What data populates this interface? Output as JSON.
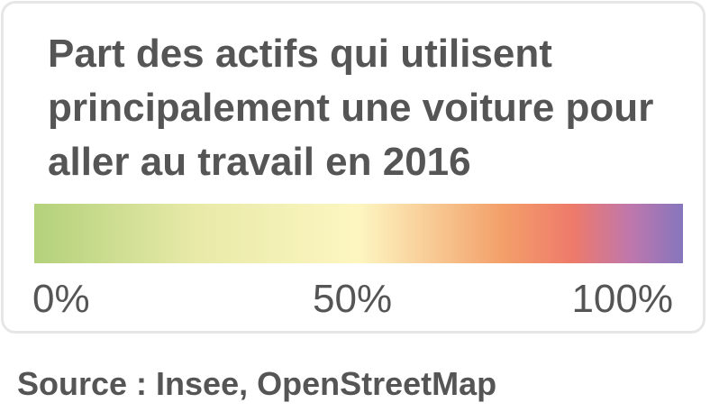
{
  "legend": {
    "title": "Part des actifs qui utilisent principalement une voiture pour aller au travail en 2016",
    "scale_colors": [
      "#b3d17b",
      "#e8eaa8",
      "#fdf6c1",
      "#f3a06a",
      "#ee7a6a",
      "#be77ad",
      "#8676bd"
    ],
    "scale_min": 0,
    "scale_max": 100,
    "ticks": {
      "min": "0%",
      "mid": "50%",
      "max": "100%"
    }
  },
  "source": "Source : Insee, OpenStreetMap"
}
